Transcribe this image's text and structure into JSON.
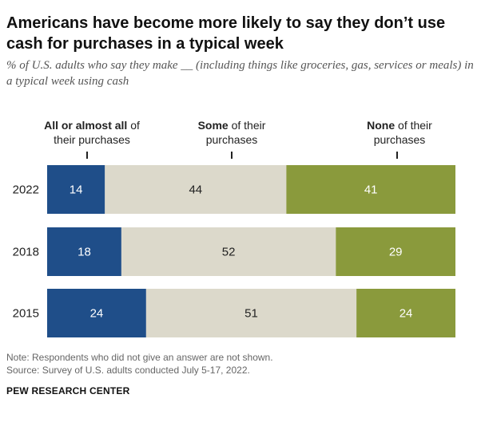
{
  "chart_data": {
    "type": "bar",
    "stacked": true,
    "orientation": "horizontal",
    "title": "Americans have become more likely to say they don’t use cash for purchases in a typical week",
    "subtitle": "% of U.S. adults who say they make __ (including things like groceries, gas, services or meals) in a typical week using cash",
    "categories": [
      "2022",
      "2018",
      "2015"
    ],
    "series": [
      {
        "name_bold": "All or almost all",
        "name_rest": " of their purchases",
        "color": "#1f4e89",
        "label_color": "#ffffff",
        "values": [
          14,
          18,
          24
        ]
      },
      {
        "name_bold": "Some",
        "name_rest": " of their purchases",
        "color": "#dcd9cb",
        "label_color": "#222222",
        "values": [
          44,
          52,
          51
        ]
      },
      {
        "name_bold": "None",
        "name_rest": " of their purchases",
        "color": "#8a9a3c",
        "label_color": "#ffffff",
        "values": [
          41,
          29,
          24
        ]
      }
    ],
    "legend": "top",
    "grid": false,
    "xlim": [
      0,
      99
    ]
  },
  "notes": {
    "note": "Note: Respondents who did not give an answer are not shown.",
    "source": "Source: Survey of U.S. adults conducted July 5-17, 2022."
  },
  "brand": "PEW RESEARCH CENTER"
}
